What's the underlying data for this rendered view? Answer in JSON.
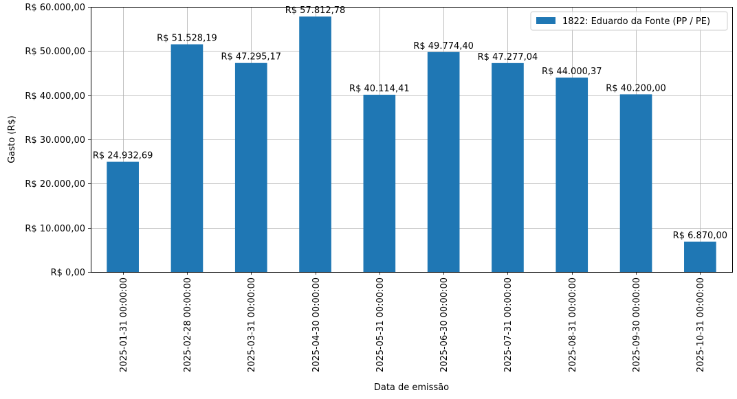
{
  "chart_data": {
    "type": "bar",
    "categories": [
      "2025-01-31 00:00:00",
      "2025-02-28 00:00:00",
      "2025-03-31 00:00:00",
      "2025-04-30 00:00:00",
      "2025-05-31 00:00:00",
      "2025-06-30 00:00:00",
      "2025-07-31 00:00:00",
      "2025-08-31 00:00:00",
      "2025-09-30 00:00:00",
      "2025-10-31 00:00:00"
    ],
    "series": [
      {
        "name": "1822: Eduardo da Fonte (PP / PE)",
        "values": [
          24932.69,
          51528.19,
          47295.17,
          57812.78,
          40114.41,
          49774.4,
          47277.04,
          44000.37,
          40200.0,
          6870.0
        ],
        "labels": [
          "R$ 24.932,69",
          "R$ 51.528,19",
          "R$ 47.295,17",
          "R$ 57.812,78",
          "R$ 40.114,41",
          "R$ 49.774,40",
          "R$ 47.277,04",
          "R$ 44.000,37",
          "R$ 40.200,00",
          "R$ 6.870,00"
        ],
        "color": "#1f77b4"
      }
    ],
    "xlabel": "Data de emissão",
    "ylabel": "Gasto (R$)",
    "ylim": [
      0,
      60000
    ],
    "yticks": [
      0,
      10000,
      20000,
      30000,
      40000,
      50000,
      60000
    ],
    "ytick_labels": [
      "R$ 0,00",
      "R$ 10.000,00",
      "R$ 20.000,00",
      "R$ 30.000,00",
      "R$ 40.000,00",
      "R$ 50.000,00",
      "R$ 60.000,00"
    ],
    "grid": true,
    "legend_position": "top-right"
  }
}
